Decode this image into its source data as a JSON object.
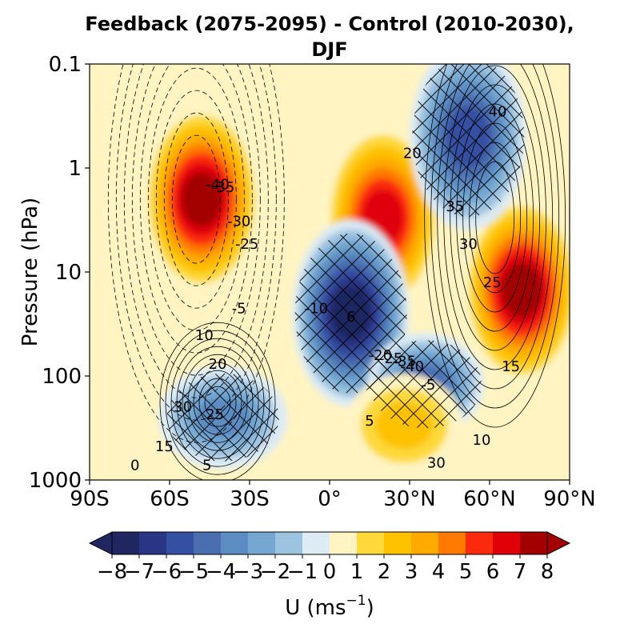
{
  "chart_data": {
    "type": "heatmap",
    "title_line1": "Feedback (2075-2095) - Control (2010-2030),",
    "title_line2": "DJF",
    "ylabel": "Pressure (hPa)",
    "y_scale": "log",
    "y_inverted": true,
    "ylim": [
      1000,
      0.1
    ],
    "xlim": [
      -90,
      90
    ],
    "x_ticks": [
      {
        "value": -90,
        "label": "90S"
      },
      {
        "value": -60,
        "label": "60S"
      },
      {
        "value": -30,
        "label": "30S"
      },
      {
        "value": 0,
        "label": "0°"
      },
      {
        "value": 30,
        "label": "30°N"
      },
      {
        "value": 60,
        "label": "60°N"
      },
      {
        "value": 90,
        "label": "90°N"
      }
    ],
    "y_ticks": [
      {
        "value": 0.1,
        "label": "0.1"
      },
      {
        "value": 1,
        "label": "1"
      },
      {
        "value": 10,
        "label": "10"
      },
      {
        "value": 100,
        "label": "100"
      },
      {
        "value": 1000,
        "label": "1000"
      }
    ],
    "colorbar": {
      "label_main": "U (ms",
      "label_sup": "−1",
      "label_end": ")",
      "levels": [
        -8,
        -7,
        -6,
        -5,
        -4,
        -3,
        -2,
        -1,
        0,
        1,
        2,
        3,
        4,
        5,
        6,
        7,
        8
      ],
      "tick_labels": [
        "−8",
        "−7",
        "−6",
        "−5",
        "−4",
        "−3",
        "−2",
        "−1",
        "0",
        "1",
        "2",
        "3",
        "4",
        "5",
        "6",
        "7",
        "8"
      ],
      "colors": [
        "#1f2660",
        "#2a3586",
        "#3550a2",
        "#4a6eb0",
        "#5b8cc2",
        "#75a7d1",
        "#9cc3e0",
        "#dcebf4",
        "#fff4c2",
        "#fed93a",
        "#fec200",
        "#feaa00",
        "#fe7a00",
        "#fc2a0d",
        "#e00008",
        "#a30000"
      ],
      "extend": "both"
    },
    "anomaly_centers": [
      {
        "lat": -48,
        "p": 2,
        "value": 7.5
      },
      {
        "lat": 20,
        "p": 3,
        "value": 7
      },
      {
        "lat": 72,
        "p": 15,
        "value": 7.5
      },
      {
        "lat": 8,
        "p": 25,
        "value": -8
      },
      {
        "lat": 52,
        "p": 0.5,
        "value": -6
      },
      {
        "lat": 36,
        "p": 120,
        "value": -5
      },
      {
        "lat": -40,
        "p": 250,
        "value": -4
      },
      {
        "lat": 28,
        "p": 300,
        "value": 3
      }
    ],
    "contour_labels": [
      "-40",
      "-35",
      "-30",
      "-25",
      "-5",
      "10",
      "20",
      "30",
      "25",
      "15",
      "5",
      "0",
      "-10",
      "-20",
      "-25",
      "-35",
      "-40",
      "-5",
      "5",
      "30",
      "10",
      "15",
      "25",
      "30",
      "35",
      "40",
      "20",
      "6"
    ],
    "hatching": "significant regions marked with cross-hatching",
    "grid": false
  }
}
